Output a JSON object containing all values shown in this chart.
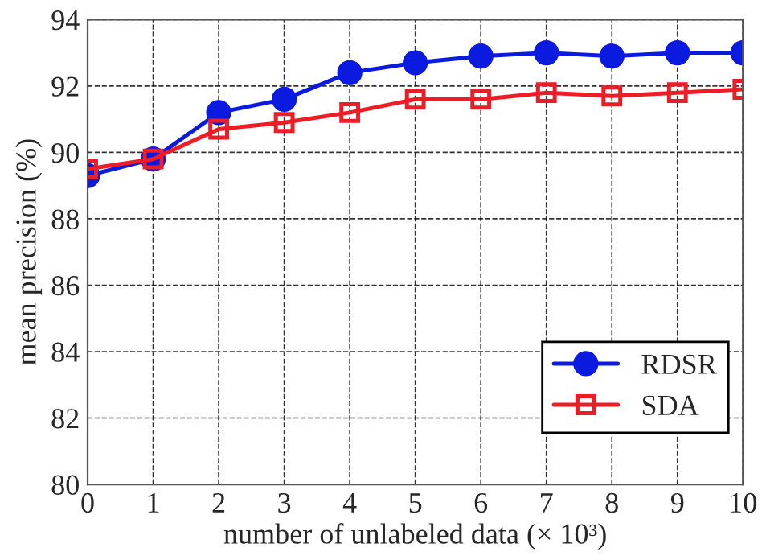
{
  "chart_data": {
    "type": "line",
    "xlabel": "number of unlabeled data (× 10³)",
    "ylabel": "mean precision (%)",
    "x": [
      0,
      1,
      2,
      3,
      4,
      5,
      6,
      7,
      8,
      9,
      10
    ],
    "series": [
      {
        "name": "RDSR",
        "color": "#0a1adf",
        "marker": "circle",
        "values": [
          89.3,
          89.8,
          91.2,
          91.6,
          92.4,
          92.7,
          92.9,
          93.0,
          92.9,
          93.0,
          93.0
        ]
      },
      {
        "name": "SDA",
        "color": "#ee1c25",
        "marker": "square",
        "values": [
          89.5,
          89.8,
          90.7,
          90.9,
          91.2,
          91.6,
          91.6,
          91.8,
          91.7,
          91.8,
          91.9
        ]
      }
    ],
    "xlim": [
      0,
      10
    ],
    "xticks": [
      0,
      1,
      2,
      3,
      4,
      5,
      6,
      7,
      8,
      9,
      10
    ],
    "ylim": [
      80,
      94
    ],
    "yticks": [
      80,
      82,
      84,
      86,
      88,
      90,
      92,
      94
    ],
    "grid": true,
    "legend": "bottom right",
    "line_style": "solid"
  }
}
